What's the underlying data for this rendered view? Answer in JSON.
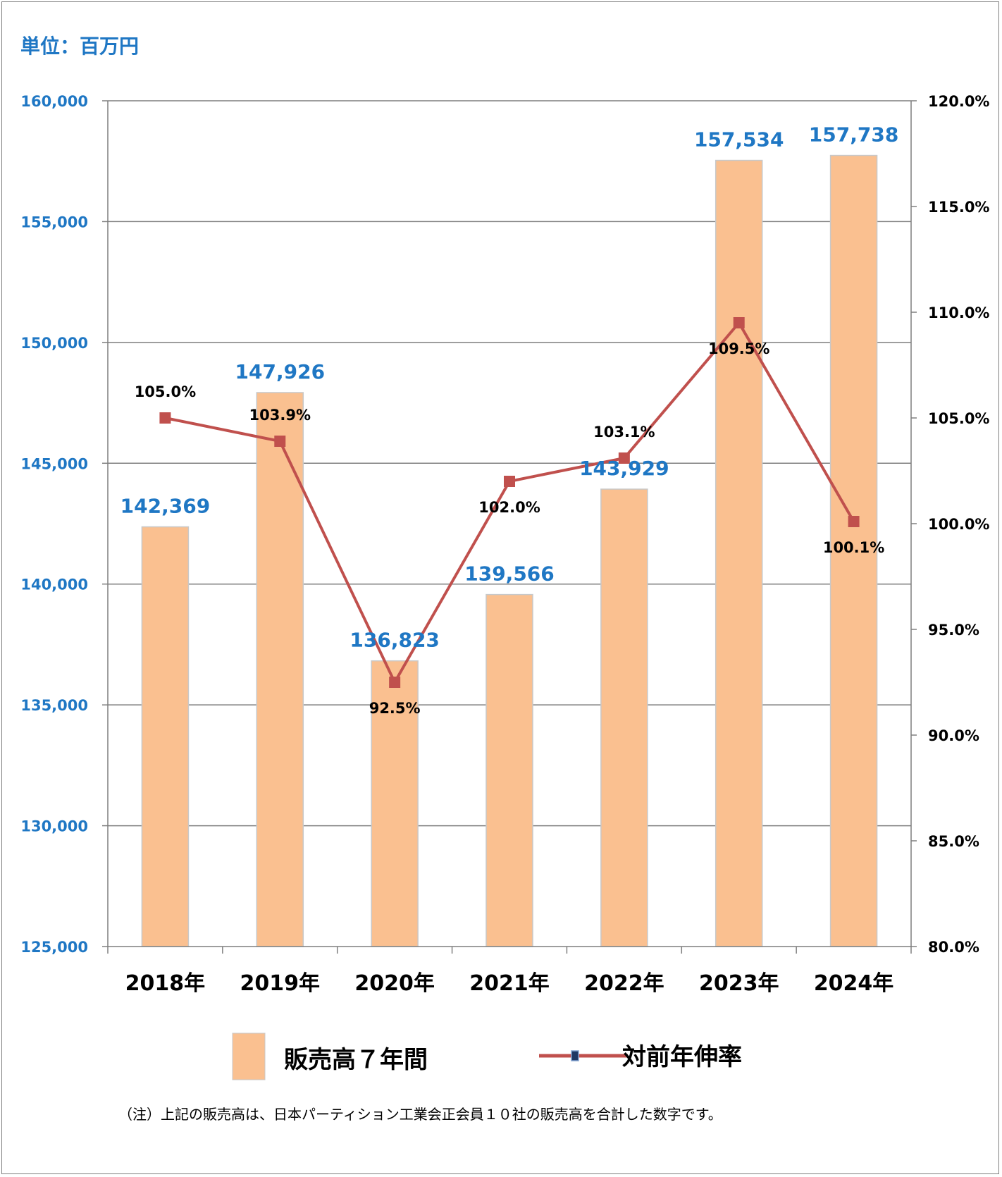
{
  "unit_label": "単位：百万円",
  "note": "（注）上記の販売高は、日本パーティション工業会正会員１０社の販売高を合計した数字です。",
  "colors": {
    "bar_fill": "#fac090",
    "bar_edge": "#c8c8c8",
    "line": "#c0504d",
    "marker": "#c0504d",
    "left_axis_text": "#1f77c4",
    "bar_label_text": "#1f77c4",
    "grid": "#7f7f7f"
  },
  "legend": {
    "bar_label": "販売高７年間",
    "line_label": "対前年伸率"
  },
  "chart_data": {
    "type": "bar",
    "categories": [
      "2018年",
      "2019年",
      "2020年",
      "2021年",
      "2022年",
      "2023年",
      "2024年"
    ],
    "series": [
      {
        "name": "販売高７年間",
        "type": "bar",
        "axis": "left",
        "values": [
          142369,
          147926,
          136823,
          139566,
          143929,
          157534,
          157738
        ],
        "labels": [
          "142,369",
          "147,926",
          "136,823",
          "139,566",
          "143,929",
          "157,534",
          "157,738"
        ]
      },
      {
        "name": "対前年伸率",
        "type": "line",
        "axis": "right",
        "values": [
          105.0,
          103.9,
          92.5,
          102.0,
          103.1,
          109.5,
          100.1
        ],
        "labels": [
          "105.0%",
          "103.9%",
          "92.5%",
          "102.0%",
          "103.1%",
          "109.5%",
          "100.1%"
        ]
      }
    ],
    "y_left": {
      "range": [
        125000,
        160000
      ],
      "ticks": [
        "125,000",
        "130,000",
        "135,000",
        "140,000",
        "145,000",
        "150,000",
        "155,000",
        "160,000"
      ]
    },
    "y_right": {
      "range": [
        80,
        120
      ],
      "ticks": [
        "80.0%",
        "85.0%",
        "90.0%",
        "95.0%",
        "100.0%",
        "105.0%",
        "110.0%",
        "115.0%",
        "120.0%"
      ]
    },
    "grid": true,
    "legend_position": "bottom"
  }
}
